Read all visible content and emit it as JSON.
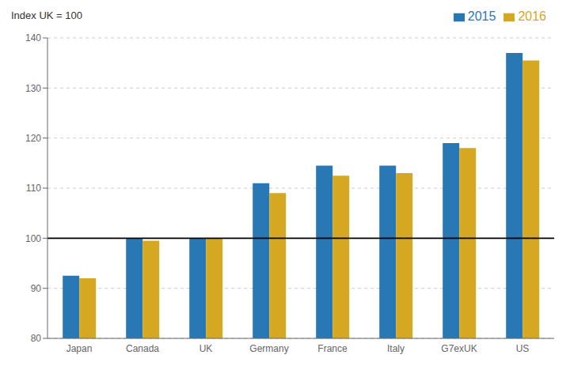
{
  "chart_data": {
    "type": "bar",
    "ylabel": "Index UK = 100",
    "categories": [
      "Japan",
      "Canada",
      "UK",
      "Germany",
      "France",
      "Italy",
      "G7exUK",
      "US"
    ],
    "series": [
      {
        "name": "2015",
        "color": "#2878b5",
        "values": [
          92.5,
          100.0,
          100.0,
          111.0,
          114.5,
          114.5,
          119.0,
          137.0
        ]
      },
      {
        "name": "2016",
        "color": "#d4a820",
        "values": [
          92.0,
          99.5,
          100.0,
          109.0,
          112.5,
          113.0,
          118.0,
          135.5
        ]
      }
    ],
    "ylim": [
      80,
      140
    ],
    "yticks": [
      80,
      90,
      100,
      110,
      120,
      130,
      140
    ],
    "hline": 100,
    "grid": true,
    "legend": "upper right"
  }
}
